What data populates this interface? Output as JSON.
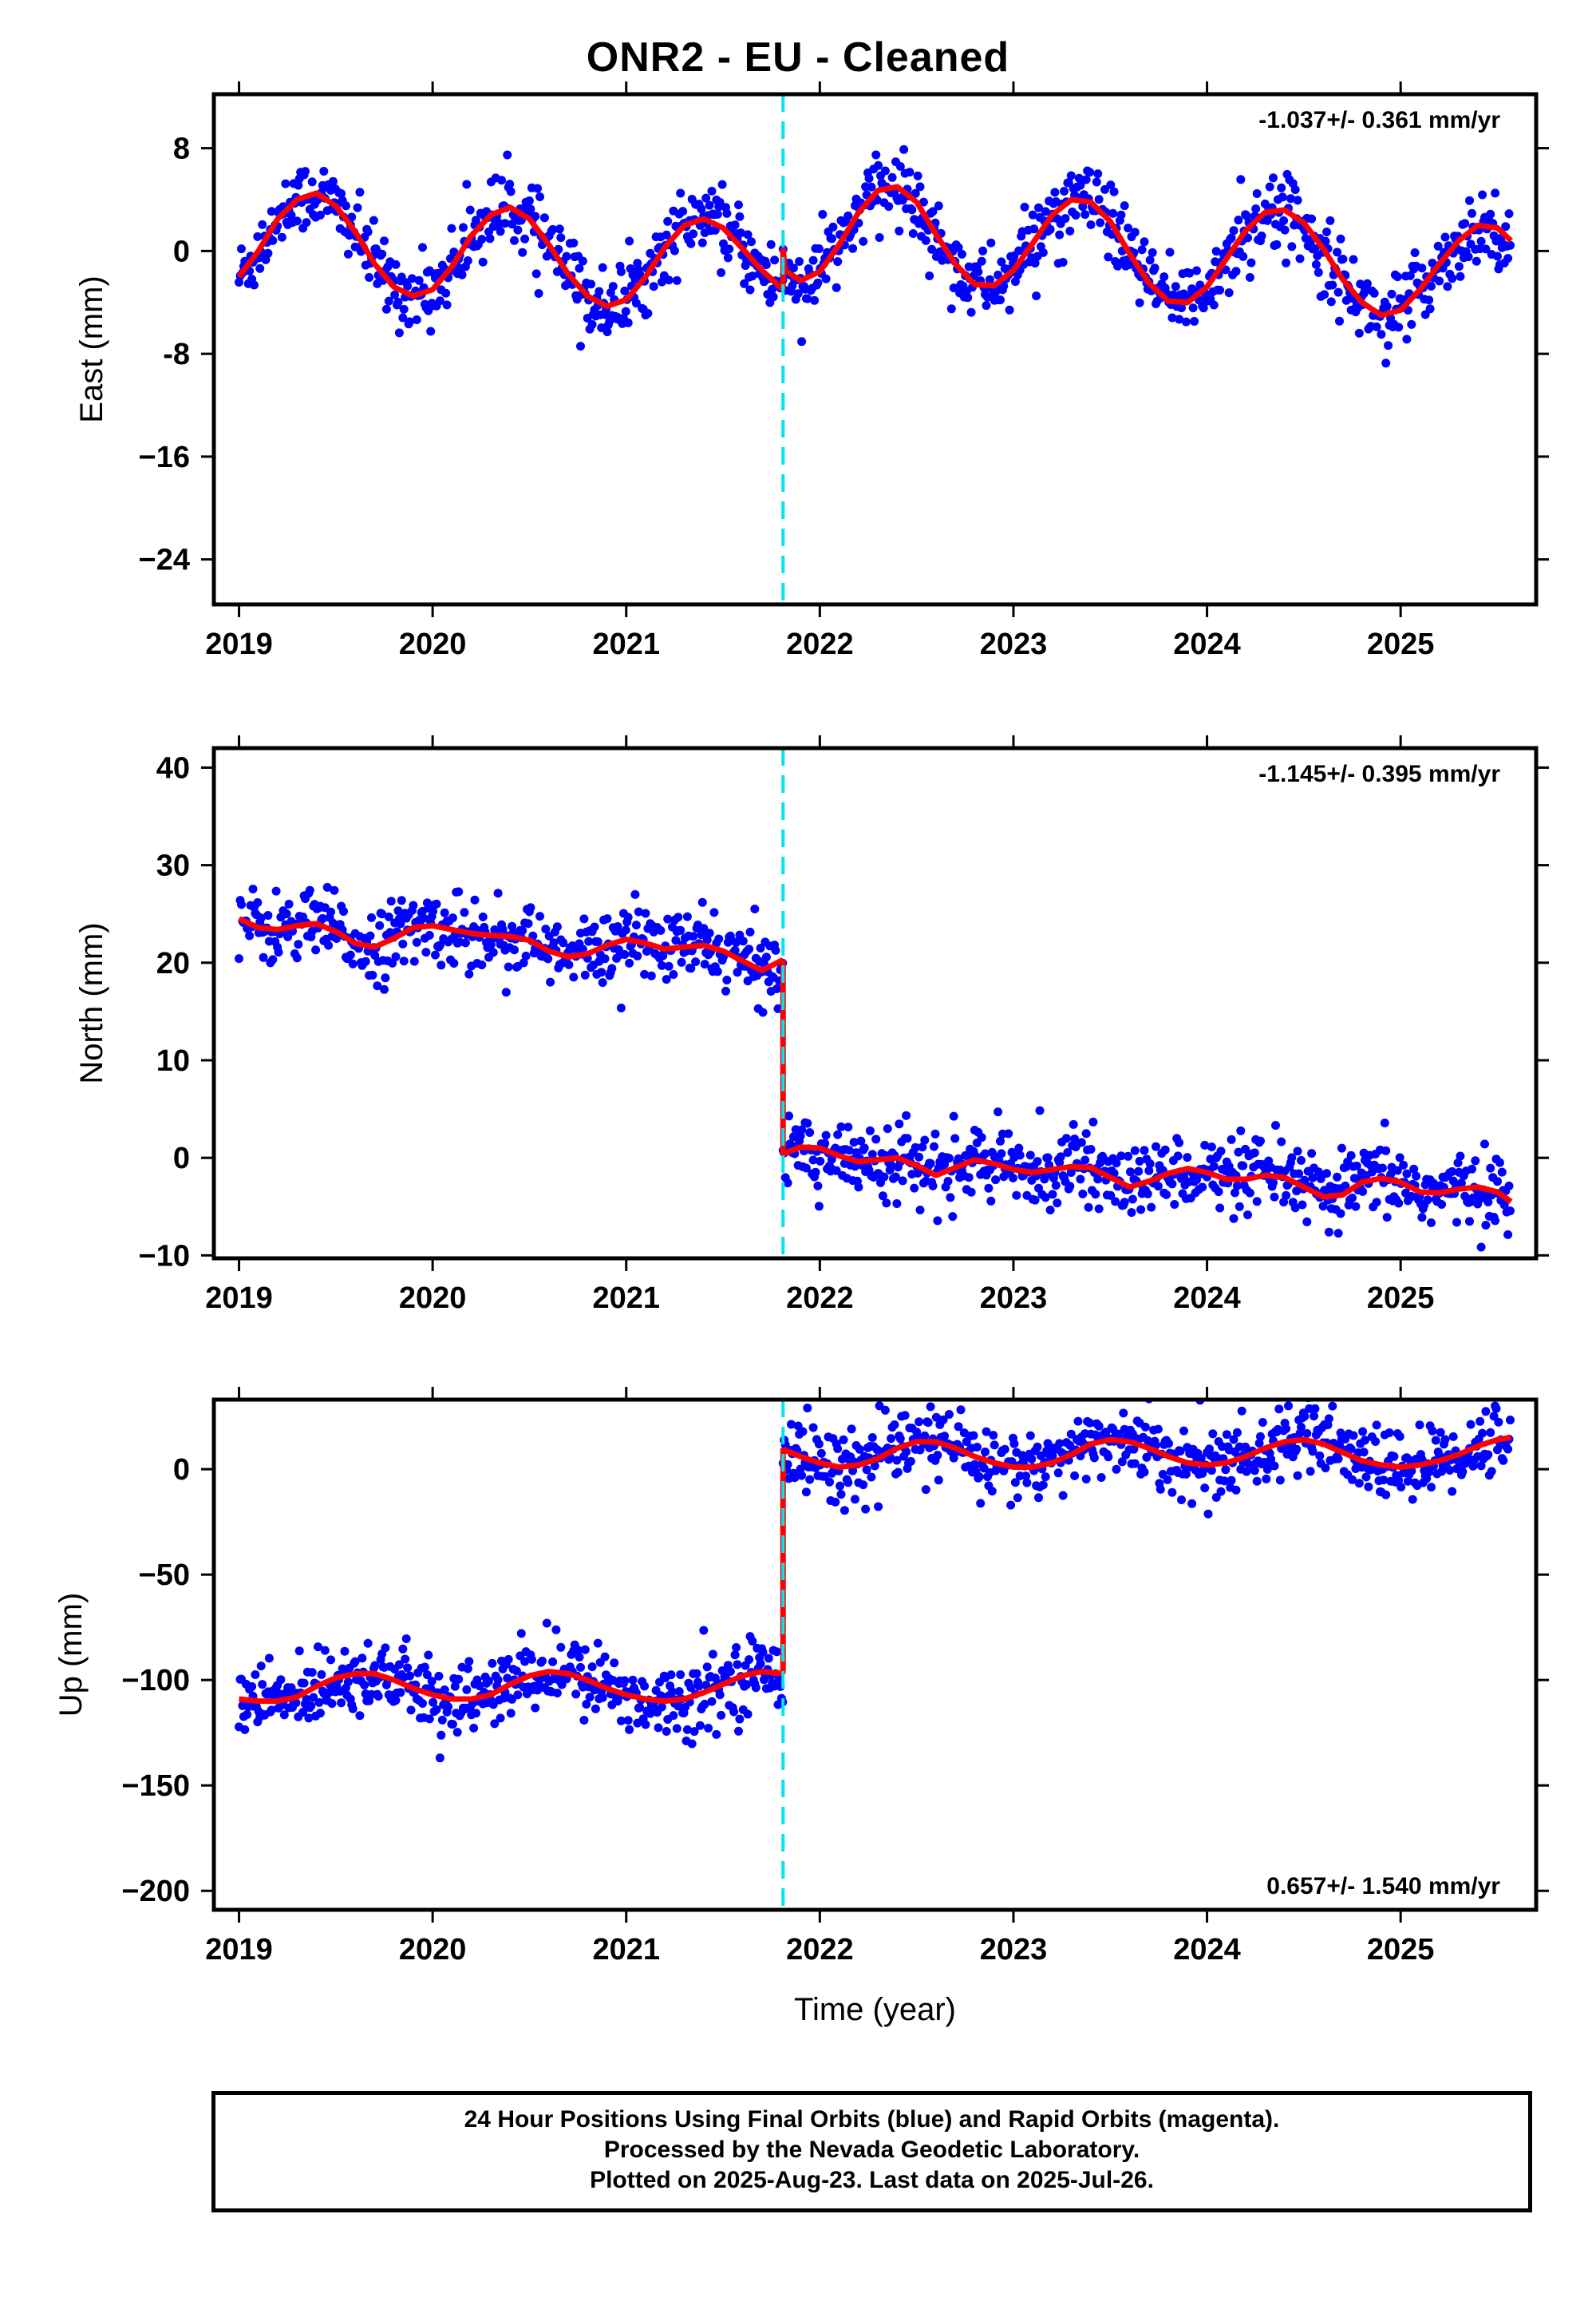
{
  "title": "ONR2  - EU - Cleaned",
  "colors": {
    "data": "#0000ff",
    "model": "#ff0000",
    "equipment_change": "#00e5ee",
    "axes": "#000000"
  },
  "caption": {
    "line1": "24 Hour Positions Using Final Orbits (blue) and Rapid Orbits (magenta).",
    "line2": "Processed by the Nevada Geodetic Laboratory.",
    "line3": "Plotted on 2025-Aug-23. Last data on 2025-Jul-26."
  },
  "chart_data": [
    {
      "type": "scatter",
      "ylabel": "East (mm)",
      "xlabel": "",
      "xlim": [
        2018.87,
        2025.7
      ],
      "ylim": [
        -27.5,
        12.2
      ],
      "yticks": [
        8,
        0,
        -8,
        -16,
        -24
      ],
      "ytick_labels": [
        "8",
        "0",
        "-8",
        "−16",
        "−24"
      ],
      "xticks": [
        2019,
        2020,
        2021,
        2022,
        2023,
        2024,
        2025
      ],
      "xtick_labels": [
        "2019",
        "2020",
        "2021",
        "2022",
        "2023",
        "2024",
        "2025"
      ],
      "rate": "-1.037+/- 0.361 mm/yr",
      "rate_position": "top-right",
      "equipment_change_epoch": 2021.81,
      "model": {
        "segments": [
          {
            "x": [
              2019.0,
              2019.1,
              2019.2,
              2019.3,
              2019.4,
              2019.5,
              2019.6,
              2019.7,
              2019.8,
              2019.9,
              2020.0,
              2020.1,
              2020.2,
              2020.3,
              2020.4,
              2020.5,
              2020.6,
              2020.7,
              2020.8,
              2020.9,
              2021.0,
              2021.1,
              2021.2,
              2021.3,
              2021.4,
              2021.5,
              2021.6,
              2021.7,
              2021.81
            ],
            "y": [
              -2.0,
              0.0,
              2.5,
              4.0,
              4.5,
              3.5,
              1.5,
              -1.0,
              -2.8,
              -3.5,
              -3.0,
              -1.2,
              1.2,
              2.8,
              3.4,
              2.5,
              0.5,
              -1.8,
              -3.5,
              -4.3,
              -3.8,
              -2.0,
              0.3,
              2.0,
              2.5,
              1.8,
              0.2,
              -1.5,
              -3.0
            ]
          },
          {
            "x": [
              2021.81,
              2021.82,
              2021.9,
              2022.0,
              2022.1,
              2022.2,
              2022.3,
              2022.4,
              2022.5,
              2022.6,
              2022.7,
              2022.8,
              2022.9,
              2023.0,
              2023.1,
              2023.2,
              2023.3,
              2023.4,
              2023.5,
              2023.6,
              2023.7,
              2023.8,
              2023.9,
              2024.0,
              2024.1,
              2024.2,
              2024.3,
              2024.4,
              2024.5,
              2024.6,
              2024.7,
              2024.8,
              2024.9,
              2025.0,
              2025.1,
              2025.2,
              2025.3,
              2025.4,
              2025.5,
              2025.57
            ],
            "y": [
              0.2,
              -1.5,
              -2.3,
              -1.6,
              0.5,
              3.0,
              4.7,
              5.0,
              3.8,
              1.3,
              -1.0,
              -2.6,
              -2.7,
              -1.5,
              0.6,
              2.8,
              4.0,
              3.8,
              2.3,
              -0.2,
              -2.5,
              -3.9,
              -4.0,
              -2.8,
              -0.6,
              1.6,
              3.0,
              3.2,
              2.2,
              0.2,
              -2.2,
              -4.0,
              -5.0,
              -4.6,
              -3.0,
              -1.0,
              0.8,
              2.0,
              1.8,
              0.8
            ]
          }
        ]
      }
    },
    {
      "type": "scatter",
      "ylabel": "North (mm)",
      "xlabel": "",
      "xlim": [
        2018.87,
        2025.7
      ],
      "ylim": [
        -10.3,
        42.0
      ],
      "yticks": [
        40,
        30,
        20,
        10,
        0,
        -10
      ],
      "ytick_labels": [
        "40",
        "30",
        "20",
        "10",
        "0",
        "−10"
      ],
      "xticks": [
        2019,
        2020,
        2021,
        2022,
        2023,
        2024,
        2025
      ],
      "xtick_labels": [
        "2019",
        "2020",
        "2021",
        "2022",
        "2023",
        "2024",
        "2025"
      ],
      "rate": "-1.145+/- 0.395 mm/yr",
      "rate_position": "top-right",
      "equipment_change_epoch": 2021.81,
      "model": {
        "segments": [
          {
            "x": [
              2019.0,
              2019.1,
              2019.2,
              2019.3,
              2019.4,
              2019.5,
              2019.6,
              2019.7,
              2019.8,
              2019.9,
              2020.0,
              2020.1,
              2020.2,
              2020.3,
              2020.4,
              2020.5,
              2020.6,
              2020.7,
              2020.8,
              2020.9,
              2021.0,
              2021.1,
              2021.2,
              2021.3,
              2021.4,
              2021.5,
              2021.6,
              2021.7,
              2021.81
            ],
            "y": [
              24.5,
              23.6,
              23.4,
              23.8,
              24.0,
              23.2,
              22.0,
              21.6,
              22.5,
              23.6,
              23.8,
              23.4,
              23.0,
              22.8,
              22.7,
              22.3,
              21.2,
              20.6,
              20.9,
              21.8,
              22.4,
              22.0,
              21.4,
              21.6,
              21.8,
              21.2,
              20.2,
              19.2,
              20.3
            ]
          },
          {
            "x": [
              2021.81,
              2021.82,
              2021.9,
              2022.0,
              2022.1,
              2022.2,
              2022.3,
              2022.4,
              2022.5,
              2022.6,
              2022.7,
              2022.8,
              2022.9,
              2023.0,
              2023.1,
              2023.2,
              2023.3,
              2023.4,
              2023.5,
              2023.6,
              2023.7,
              2023.8,
              2023.9,
              2024.0,
              2024.1,
              2024.2,
              2024.3,
              2024.4,
              2024.5,
              2024.6,
              2024.7,
              2024.8,
              2024.9,
              2025.0,
              2025.1,
              2025.2,
              2025.3,
              2025.4,
              2025.5,
              2025.57
            ],
            "y": [
              0.3,
              0.5,
              1.1,
              1.0,
              0.2,
              -0.4,
              -0.2,
              0.0,
              -0.8,
              -1.8,
              -1.0,
              -0.2,
              -0.6,
              -1.2,
              -1.5,
              -1.2,
              -0.9,
              -1.0,
              -2.0,
              -3.0,
              -2.4,
              -1.6,
              -1.1,
              -1.5,
              -2.2,
              -2.2,
              -1.8,
              -2.0,
              -3.0,
              -4.0,
              -3.8,
              -2.5,
              -2.1,
              -2.5,
              -3.5,
              -3.6,
              -3.2,
              -3.0,
              -3.5,
              -4.5
            ]
          }
        ]
      }
    },
    {
      "type": "scatter",
      "ylabel": "Up (mm)",
      "xlabel": "Time (year)",
      "xlim": [
        2018.87,
        2025.7
      ],
      "ylim": [
        -209,
        33
      ],
      "yticks": [
        0,
        -50,
        -100,
        -150,
        -200
      ],
      "ytick_labels": [
        "0",
        "−50",
        "−100",
        "−150",
        "−200"
      ],
      "xticks": [
        2019,
        2020,
        2021,
        2022,
        2023,
        2024,
        2025
      ],
      "xtick_labels": [
        "2019",
        "2020",
        "2021",
        "2022",
        "2023",
        "2024",
        "2025"
      ],
      "rate": "0.657+/- 1.540 mm/yr",
      "rate_position": "bottom-right",
      "equipment_change_epoch": 2021.81,
      "model": {
        "segments": [
          {
            "x": [
              2019.0,
              2019.1,
              2019.2,
              2019.3,
              2019.4,
              2019.5,
              2019.6,
              2019.7,
              2019.8,
              2019.9,
              2020.0,
              2020.1,
              2020.2,
              2020.3,
              2020.4,
              2020.5,
              2020.6,
              2020.7,
              2020.8,
              2020.9,
              2021.0,
              2021.1,
              2021.2,
              2021.3,
              2021.4,
              2021.5,
              2021.6,
              2021.7,
              2021.81
            ],
            "y": [
              -109,
              -110,
              -110,
              -108,
              -103,
              -99,
              -97,
              -97,
              -100,
              -104,
              -107,
              -109,
              -109,
              -107,
              -102,
              -98,
              -96,
              -97,
              -100,
              -104,
              -107,
              -109,
              -110,
              -109,
              -106,
              -102,
              -98,
              -96,
              -97
            ]
          },
          {
            "x": [
              2021.81,
              2021.82,
              2021.9,
              2022.0,
              2022.1,
              2022.2,
              2022.3,
              2022.4,
              2022.5,
              2022.6,
              2022.7,
              2022.8,
              2022.9,
              2023.0,
              2023.1,
              2023.2,
              2023.3,
              2023.4,
              2023.5,
              2023.6,
              2023.7,
              2023.8,
              2023.9,
              2024.0,
              2024.1,
              2024.2,
              2024.3,
              2024.4,
              2024.5,
              2024.6,
              2024.7,
              2024.8,
              2024.9,
              2025.0,
              2025.1,
              2025.2,
              2025.3,
              2025.4,
              2025.5,
              2025.57
            ],
            "y": [
              10,
              9,
              6,
              3,
              1,
              2,
              5,
              10,
              13,
              13,
              10,
              6,
              3,
              1,
              1,
              3,
              7,
              12,
              14,
              13,
              10,
              6,
              3,
              2,
              3,
              6,
              10,
              13,
              14,
              12,
              8,
              4,
              2,
              1,
              2,
              4,
              7,
              11,
              14,
              15
            ]
          }
        ]
      }
    }
  ]
}
